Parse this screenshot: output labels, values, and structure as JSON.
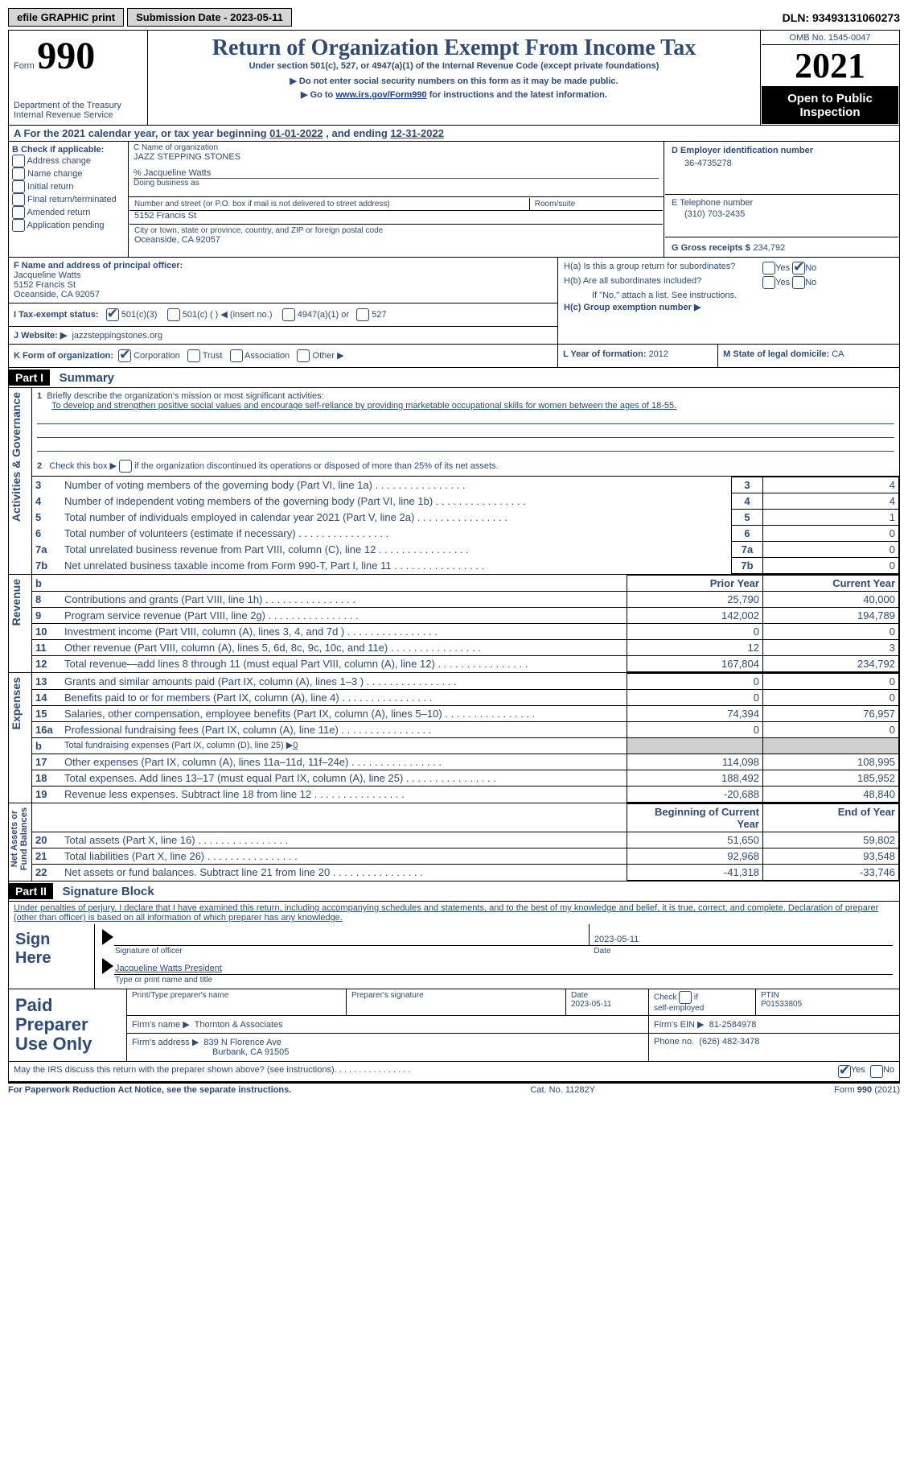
{
  "topbar": {
    "efile_label": "efile GRAPHIC print",
    "submission_label": "Submission Date - 2023-05-11",
    "dln_label": "DLN: 93493131060273"
  },
  "header": {
    "form_word": "Form",
    "form_number": "990",
    "dept": "Department of the Treasury\nInternal Revenue Service",
    "title": "Return of Organization Exempt From Income Tax",
    "subtitle": "Under section 501(c), 527, or 4947(a)(1) of the Internal Revenue Code (except private foundations)",
    "note1": "▶ Do not enter social security numbers on this form as it may be made public.",
    "note2_pre": "▶ Go to ",
    "note2_link": "www.irs.gov/Form990",
    "note2_post": " for instructions and the latest information.",
    "omb": "OMB No. 1545-0047",
    "year": "2021",
    "inspection": "Open to Public Inspection"
  },
  "A": {
    "text_pre": "A For the 2021 calendar year, or tax year beginning ",
    "begin": "01-01-2022",
    "mid": "   , and ending ",
    "end": "12-31-2022"
  },
  "B": {
    "label": "B Check if applicable:",
    "opts": [
      "Address change",
      "Name change",
      "Initial return",
      "Final return/terminated",
      "Amended return",
      "Application pending"
    ]
  },
  "C": {
    "name_label": "C Name of organization",
    "name": "JAZZ STEPPING STONES",
    "care_of": "% Jacqueline Watts",
    "dba_label": "Doing business as",
    "street_label": "Number and street (or P.O. box if mail is not delivered to street address)",
    "room_label": "Room/suite",
    "street": "5152 Francis St",
    "city_label": "City or town, state or province, country, and ZIP or foreign postal code",
    "city": "Oceanside, CA  92057"
  },
  "D": {
    "label": "D Employer identification number",
    "value": "36-4735278"
  },
  "E": {
    "label": "E Telephone number",
    "value": "(310) 703-2435"
  },
  "G": {
    "label": "G Gross receipts $",
    "value": "234,792"
  },
  "F": {
    "label": "F  Name and address of principal officer:",
    "name": "Jacqueline Watts",
    "street": "5152 Francis St",
    "city": "Oceanside, CA  92057"
  },
  "H": {
    "a_label": "H(a)  Is this a group return for subordinates?",
    "b_label": "H(b)  Are all subordinates included?",
    "note": "If \"No,\" attach a list. See instructions.",
    "c_label": "H(c)  Group exemption number ▶",
    "yes": "Yes",
    "no": "No"
  },
  "I": {
    "label": "I   Tax-exempt status:",
    "o1": "501(c)(3)",
    "o2": "501(c) (   ) ◀ (insert no.)",
    "o3": "4947(a)(1) or",
    "o4": "527"
  },
  "J": {
    "label": "J   Website: ▶",
    "value": "jazzsteppingstones.org"
  },
  "K": {
    "label": "K Form of organization:",
    "o1": "Corporation",
    "o2": "Trust",
    "o3": "Association",
    "o4": "Other ▶"
  },
  "L": {
    "label": "L Year of formation: ",
    "value": "2012"
  },
  "M": {
    "label": "M State of legal domicile: ",
    "value": "CA"
  },
  "part1": {
    "tag": "Part I",
    "title": "Summary",
    "mission_label": "Briefly describe the organization's mission or most significant activities:",
    "mission": "To develop and strengthen positive social values and encourage self-reliance by providing marketable occupational skills for women between the ages of 18-55.",
    "line2": "Check this box ▶         if the organization discontinued its operations or disposed of more than 25% of its net assets.",
    "rows_gov": [
      {
        "n": "3",
        "t": "Number of voting members of the governing body (Part VI, line 1a)",
        "v": "4"
      },
      {
        "n": "4",
        "t": "Number of independent voting members of the governing body (Part VI, line 1b)",
        "v": "4"
      },
      {
        "n": "5",
        "t": "Total number of individuals employed in calendar year 2021 (Part V, line 2a)",
        "v": "1"
      },
      {
        "n": "6",
        "t": "Total number of volunteers (estimate if necessary)",
        "v": "0"
      },
      {
        "n": "7a",
        "t": "Total unrelated business revenue from Part VIII, column (C), line 12",
        "v": "0"
      },
      {
        "n": "7b",
        "t": "Net unrelated business taxable income from Form 990-T, Part I, line 11",
        "v": "0"
      }
    ],
    "prior_label": "Prior Year",
    "current_label": "Current Year",
    "rev": [
      {
        "n": "8",
        "t": "Contributions and grants (Part VIII, line 1h)",
        "p": "25,790",
        "c": "40,000"
      },
      {
        "n": "9",
        "t": "Program service revenue (Part VIII, line 2g)",
        "p": "142,002",
        "c": "194,789"
      },
      {
        "n": "10",
        "t": "Investment income (Part VIII, column (A), lines 3, 4, and 7d )",
        "p": "0",
        "c": "0"
      },
      {
        "n": "11",
        "t": "Other revenue (Part VIII, column (A), lines 5, 6d, 8c, 9c, 10c, and 11e)",
        "p": "12",
        "c": "3"
      },
      {
        "n": "12",
        "t": "Total revenue—add lines 8 through 11 (must equal Part VIII, column (A), line 12)",
        "p": "167,804",
        "c": "234,792"
      }
    ],
    "exp": [
      {
        "n": "13",
        "t": "Grants and similar amounts paid (Part IX, column (A), lines 1–3 )",
        "p": "0",
        "c": "0"
      },
      {
        "n": "14",
        "t": "Benefits paid to or for members (Part IX, column (A), line 4)",
        "p": "0",
        "c": "0"
      },
      {
        "n": "15",
        "t": "Salaries, other compensation, employee benefits (Part IX, column (A), lines 5–10)",
        "p": "74,394",
        "c": "76,957"
      },
      {
        "n": "16a",
        "t": "Professional fundraising fees (Part IX, column (A), line 11e)",
        "p": "0",
        "c": "0"
      },
      {
        "n": "b",
        "t": "Total fundraising expenses (Part IX, column (D), line 25) ▶",
        "p": "grey",
        "c": "grey",
        "extra": "0"
      },
      {
        "n": "17",
        "t": "Other expenses (Part IX, column (A), lines 11a–11d, 11f–24e)",
        "p": "114,098",
        "c": "108,995"
      },
      {
        "n": "18",
        "t": "Total expenses. Add lines 13–17 (must equal Part IX, column (A), line 25)",
        "p": "188,492",
        "c": "185,952"
      },
      {
        "n": "19",
        "t": "Revenue less expenses. Subtract line 18 from line 12",
        "p": "-20,688",
        "c": "48,840"
      }
    ],
    "na_begin": "Beginning of Current Year",
    "na_end": "End of Year",
    "na": [
      {
        "n": "20",
        "t": "Total assets (Part X, line 16)",
        "p": "51,650",
        "c": "59,802"
      },
      {
        "n": "21",
        "t": "Total liabilities (Part X, line 26)",
        "p": "92,968",
        "c": "93,548"
      },
      {
        "n": "22",
        "t": "Net assets or fund balances. Subtract line 21 from line 20",
        "p": "-41,318",
        "c": "-33,746"
      }
    ],
    "side_gov": "Activities & Governance",
    "side_rev": "Revenue",
    "side_exp": "Expenses",
    "side_na": "Net Assets or\nFund Balances"
  },
  "part2": {
    "tag": "Part II",
    "title": "Signature Block",
    "perjury": "Under penalties of perjury, I declare that I have examined this return, including accompanying schedules and statements, and to the best of my knowledge and belief, it is true, correct, and complete. Declaration of preparer (other than officer) is based on all information of which preparer has any knowledge.",
    "sign_here": "Sign Here",
    "sig_officer": "Signature of officer",
    "sig_date": "Date",
    "sig_date_val": "2023-05-11",
    "typed_name": "Jacqueline Watts  President",
    "typed_label": "Type or print name and title",
    "paid": "Paid Preparer Use Only",
    "pp_name_label": "Print/Type preparer's name",
    "pp_sig_label": "Preparer's signature",
    "pp_date_label": "Date",
    "pp_date": "2023-05-11",
    "pp_check_label": "Check          if self-employed",
    "ptin_label": "PTIN",
    "ptin": "P01533805",
    "firm_name_label": "Firm's name    ▶",
    "firm_name": "Thornton & Associates",
    "firm_ein_label": "Firm's EIN ▶",
    "firm_ein": "81-2584978",
    "firm_addr_label": "Firm's address ▶",
    "firm_addr1": "839 N Florence Ave",
    "firm_addr2": "Burbank, CA  91505",
    "phone_label": "Phone no.",
    "phone": "(626) 482-3478",
    "discuss": "May the IRS discuss this return with the preparer shown above? (see instructions)",
    "yes": "Yes",
    "no": "No"
  },
  "footer": {
    "left": "For Paperwork Reduction Act Notice, see the separate instructions.",
    "mid": "Cat. No. 11282Y",
    "right": "Form 990 (2021)"
  }
}
